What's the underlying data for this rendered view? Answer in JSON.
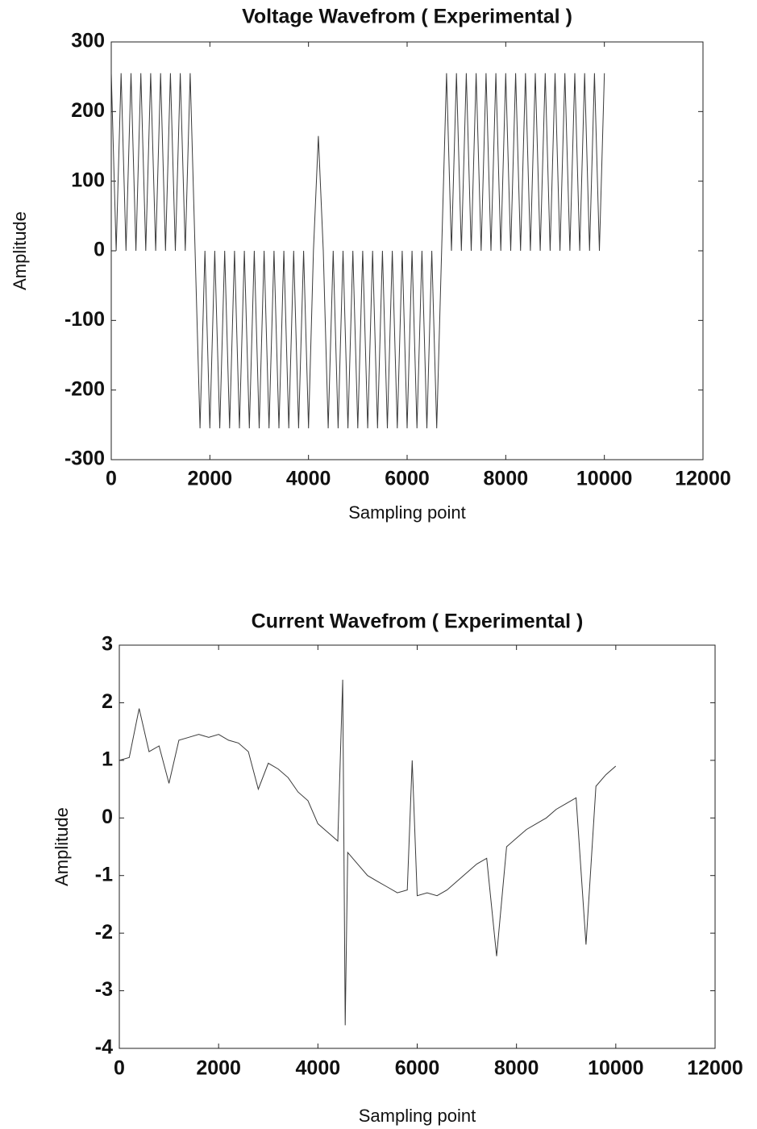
{
  "chart_data": [
    {
      "type": "line",
      "title": "Voltage Wavefrom ( Experimental )",
      "x_label": "Sampling point",
      "y_label": "Amplitude",
      "color": "#3a3a3a",
      "x": [
        0,
        100,
        200,
        300,
        400,
        500,
        600,
        700,
        800,
        900,
        1000,
        1100,
        1200,
        1300,
        1400,
        1500,
        1600,
        1700,
        1800,
        1900,
        2000,
        2100,
        2200,
        2300,
        2400,
        2500,
        2600,
        2700,
        2800,
        2900,
        3000,
        3100,
        3200,
        3300,
        3400,
        3500,
        3600,
        3700,
        3800,
        3900,
        4000,
        4100,
        4200,
        4300,
        4400,
        4500,
        4600,
        4700,
        4800,
        4900,
        5000,
        5100,
        5200,
        5300,
        5400,
        5500,
        5600,
        5700,
        5800,
        5900,
        6000,
        6100,
        6200,
        6300,
        6400,
        6500,
        6600,
        6700,
        6800,
        6900,
        7000,
        7100,
        7200,
        7300,
        7400,
        7500,
        7600,
        7700,
        7800,
        7900,
        8000,
        8100,
        8200,
        8300,
        8400,
        8500,
        8600,
        8700,
        8800,
        8900,
        9000,
        9100,
        9200,
        9300,
        9400,
        9500,
        9600,
        9700,
        9800,
        9900,
        10000
      ],
      "values": [
        255,
        0,
        255,
        0,
        255,
        0,
        255,
        0,
        255,
        0,
        255,
        0,
        255,
        0,
        255,
        0,
        255,
        0,
        -255,
        0,
        -255,
        0,
        -255,
        0,
        -255,
        0,
        -255,
        0,
        -255,
        0,
        -255,
        0,
        -255,
        0,
        -255,
        0,
        -255,
        0,
        -255,
        0,
        -255,
        0,
        165,
        0,
        -255,
        0,
        -255,
        0,
        -255,
        0,
        -255,
        0,
        -255,
        0,
        -255,
        0,
        -255,
        0,
        -255,
        0,
        -255,
        0,
        -255,
        0,
        -255,
        0,
        -255,
        0,
        255,
        0,
        255,
        0,
        255,
        0,
        255,
        0,
        255,
        0,
        255,
        0,
        255,
        0,
        255,
        0,
        255,
        0,
        255,
        0,
        255,
        0,
        255,
        0,
        255,
        0,
        255,
        0,
        255,
        0,
        255,
        0,
        255
      ],
      "xlim": [
        0,
        12000
      ],
      "xticks": [
        0,
        2000,
        4000,
        6000,
        8000,
        10000,
        12000
      ],
      "ylim": [
        -300,
        300
      ],
      "yticks": [
        -300,
        -200,
        -100,
        0,
        100,
        200,
        300
      ]
    },
    {
      "type": "line",
      "title": "Current Wavefrom ( Experimental )",
      "x_label": "Sampling point",
      "y_label": "Amplitude",
      "color": "#3a3a3a",
      "x": [
        0,
        200,
        400,
        600,
        800,
        1000,
        1200,
        1400,
        1600,
        1800,
        2000,
        2200,
        2400,
        2600,
        2800,
        3000,
        3200,
        3400,
        3600,
        3800,
        4000,
        4200,
        4400,
        4500,
        4550,
        4600,
        4800,
        5000,
        5200,
        5400,
        5600,
        5800,
        5900,
        6000,
        6200,
        6400,
        6600,
        6800,
        7000,
        7200,
        7400,
        7600,
        7800,
        8000,
        8200,
        8400,
        8600,
        8800,
        9000,
        9200,
        9400,
        9600,
        9800,
        10000
      ],
      "values": [
        1.0,
        1.05,
        1.9,
        1.15,
        1.25,
        0.6,
        1.35,
        1.4,
        1.45,
        1.4,
        1.45,
        1.35,
        1.3,
        1.15,
        0.5,
        0.95,
        0.85,
        0.7,
        0.45,
        0.3,
        -0.1,
        -0.25,
        -0.4,
        2.4,
        -3.6,
        -0.6,
        -0.8,
        -1.0,
        -1.1,
        -1.2,
        -1.3,
        -1.25,
        1.0,
        -1.35,
        -1.3,
        -1.35,
        -1.25,
        -1.1,
        -0.95,
        -0.8,
        -0.7,
        -2.4,
        -0.5,
        -0.35,
        -0.2,
        -0.1,
        0.0,
        0.15,
        0.25,
        0.35,
        -2.2,
        0.55,
        0.75,
        0.9
      ],
      "xlim": [
        0,
        12000
      ],
      "xticks": [
        0,
        2000,
        4000,
        6000,
        8000,
        10000,
        12000
      ],
      "ylim": [
        -4,
        3
      ],
      "yticks": [
        -4,
        -3,
        -2,
        -1,
        0,
        1,
        2,
        3
      ]
    }
  ]
}
